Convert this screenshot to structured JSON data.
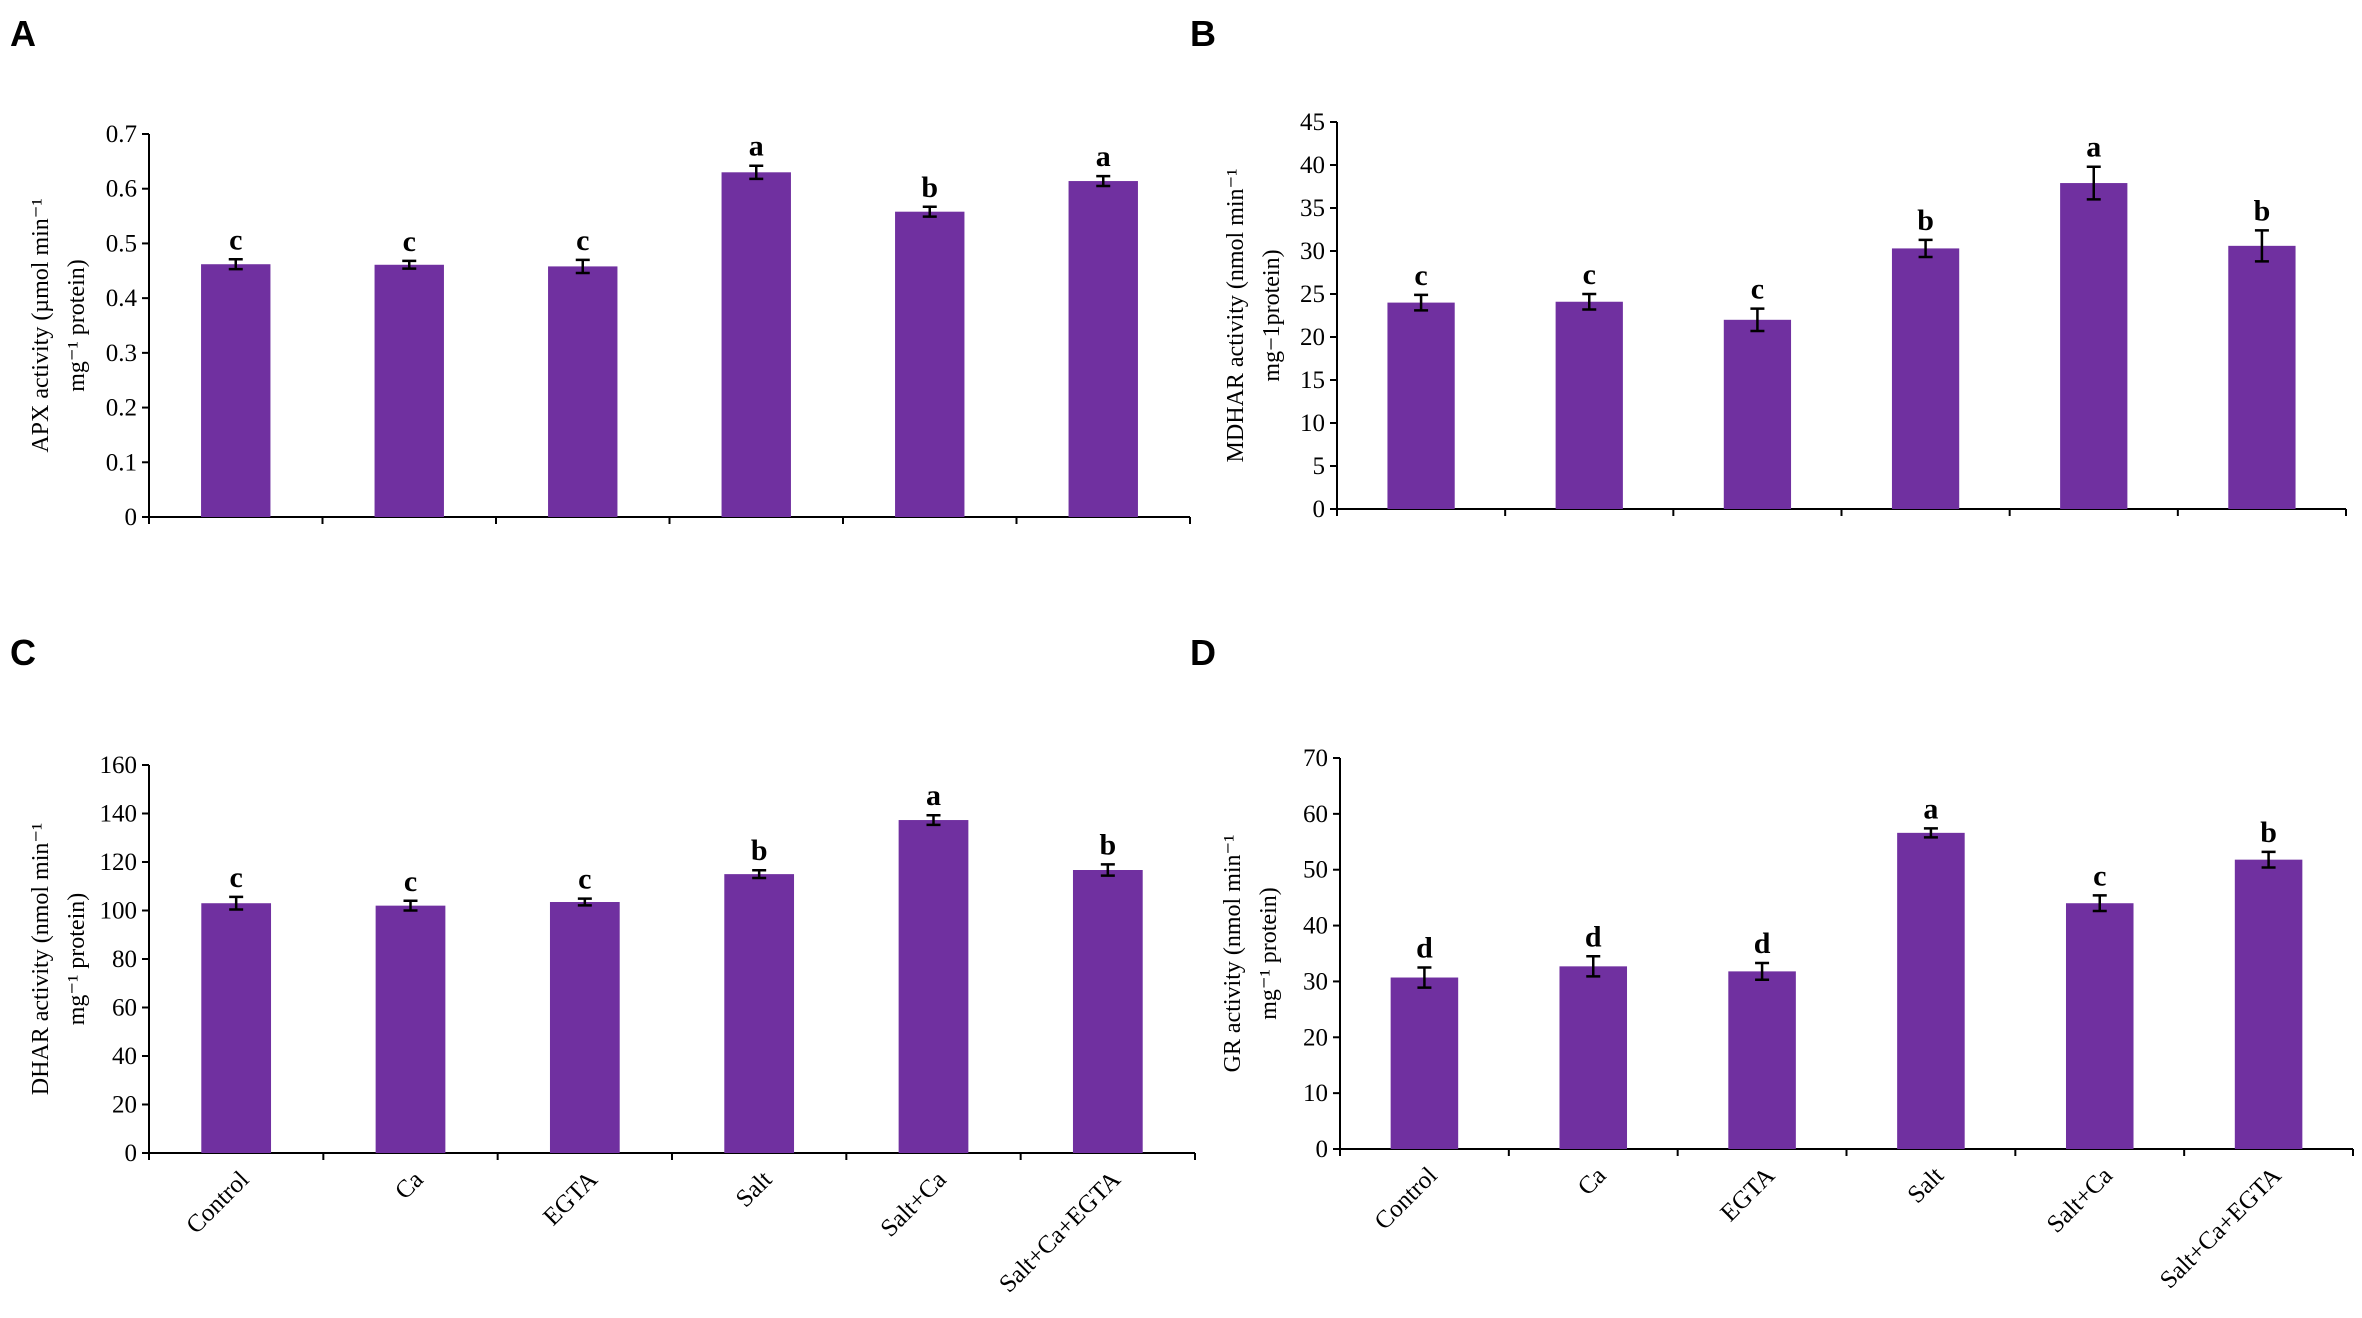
{
  "colors": {
    "bar": "#7030a0",
    "axis": "#000000"
  },
  "chart_data": [
    {
      "panel": "A",
      "type": "bar",
      "title": "",
      "xlabel": "",
      "ylabel_lines": [
        "APX activity (µmol min⁻¹",
        "mg⁻¹ protein)"
      ],
      "ylim": [
        0,
        0.7
      ],
      "ytick_labels": [
        "0",
        "0.1",
        "0.2",
        "0.3",
        "0.4",
        "0.5",
        "0.6",
        "0.7"
      ],
      "categories": [
        "Control",
        "Ca",
        "EGTA",
        "Salt",
        "Salt+Ca",
        "Salt+Ca+EGTA"
      ],
      "show_category_labels": false,
      "values": [
        0.462,
        0.461,
        0.458,
        0.63,
        0.558,
        0.614
      ],
      "errors": [
        0.009,
        0.007,
        0.012,
        0.012,
        0.009,
        0.009
      ],
      "annotations": [
        "c",
        "c",
        "c",
        "a",
        "b",
        "a"
      ]
    },
    {
      "panel": "B",
      "type": "bar",
      "title": "",
      "xlabel": "",
      "ylabel_lines": [
        "MDHAR activity (nmol min⁻¹",
        "mg−1protein)"
      ],
      "ylim": [
        0,
        45
      ],
      "ytick_labels": [
        "0",
        "5",
        "10",
        "15",
        "20",
        "25",
        "30",
        "35",
        "40",
        "45"
      ],
      "categories": [
        "Control",
        "Ca",
        "EGTA",
        "Salt",
        "Salt+Ca",
        "Salt+Ca+EGTA"
      ],
      "show_category_labels": false,
      "values": [
        24.0,
        24.1,
        22.0,
        30.3,
        37.9,
        30.6
      ],
      "errors": [
        0.9,
        0.9,
        1.3,
        1.0,
        1.9,
        1.8
      ],
      "annotations": [
        "c",
        "c",
        "c",
        "b",
        "a",
        "b"
      ]
    },
    {
      "panel": "C",
      "type": "bar",
      "title": "",
      "xlabel": "",
      "ylabel_lines": [
        "DHAR activity  (nmol min⁻¹",
        "mg⁻¹ protein)"
      ],
      "ylim": [
        0,
        160
      ],
      "ytick_labels": [
        "0",
        "20",
        "40",
        "60",
        "80",
        "100",
        "120",
        "140",
        "160"
      ],
      "categories": [
        "Control",
        "Ca",
        "EGTA",
        "Salt",
        "Salt+Ca",
        "Salt+Ca+EGTA"
      ],
      "show_category_labels": true,
      "values": [
        103.0,
        102.0,
        103.5,
        115.0,
        137.3,
        116.7
      ],
      "errors": [
        2.6,
        2.0,
        1.4,
        1.6,
        2.0,
        2.3
      ],
      "annotations": [
        "c",
        "c",
        "c",
        "b",
        "a",
        "b"
      ]
    },
    {
      "panel": "D",
      "type": "bar",
      "title": "",
      "xlabel": "",
      "ylabel_lines": [
        "GR activity  (nmol min⁻¹",
        "mg⁻¹ protein)"
      ],
      "ylim": [
        0,
        70
      ],
      "ytick_labels": [
        "0",
        "10",
        "20",
        "30",
        "40",
        "50",
        "60",
        "70"
      ],
      "categories": [
        "Control",
        "Ca",
        "EGTA",
        "Salt",
        "Salt+Ca",
        "Salt+Ca+EGTA"
      ],
      "show_category_labels": true,
      "values": [
        30.7,
        32.7,
        31.8,
        56.6,
        44.0,
        51.8
      ],
      "errors": [
        1.8,
        1.8,
        1.5,
        0.8,
        1.4,
        1.4
      ],
      "annotations": [
        "d",
        "d",
        "d",
        "a",
        "c",
        "b"
      ]
    }
  ]
}
